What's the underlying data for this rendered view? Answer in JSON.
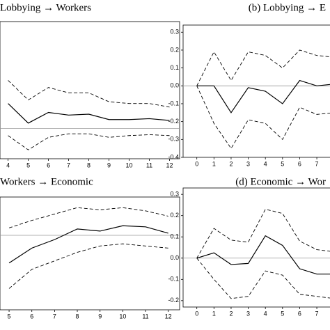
{
  "chart_data": [
    {
      "type": "line",
      "title": "Lobbying → Workers",
      "xlim": [
        3.6,
        12.5
      ],
      "ylim": [
        -0.17,
        0.6
      ],
      "xticks": [
        4,
        5,
        6,
        7,
        8,
        9,
        10,
        11,
        12
      ],
      "hline": 0,
      "x": [
        4,
        5,
        6,
        7,
        8,
        9,
        10,
        11,
        12
      ],
      "series": [
        {
          "style": "solid",
          "color": "#000000",
          "values": [
            0.14,
            0.03,
            0.09,
            0.075,
            0.08,
            0.05,
            0.05,
            0.055,
            0.045
          ]
        },
        {
          "style": "dashed",
          "color": "#000000",
          "values": [
            0.27,
            0.16,
            0.23,
            0.2,
            0.2,
            0.15,
            0.14,
            0.14,
            0.12
          ]
        },
        {
          "style": "dashed",
          "color": "#000000",
          "values": [
            -0.04,
            -0.12,
            -0.05,
            -0.03,
            -0.03,
            -0.05,
            -0.04,
            -0.035,
            -0.04
          ]
        }
      ]
    },
    {
      "type": "line",
      "title": "(b) Lobbying → E",
      "xlim": [
        -0.8,
        8.5
      ],
      "ylim": [
        -0.4,
        0.34
      ],
      "xticks": [
        0,
        1,
        2,
        3,
        4,
        5,
        6,
        7,
        8
      ],
      "hline": 0,
      "yticks": [
        0.3,
        0.2,
        0.1,
        {
          "value": 0,
          "label": "0.0"
        },
        -0.1,
        -0.2,
        -0.3,
        -0.4
      ],
      "x": [
        0,
        1,
        2,
        3,
        4,
        5,
        6,
        7,
        8
      ],
      "series": [
        {
          "style": "solid",
          "color": "#000000",
          "values": [
            0,
            0,
            -0.15,
            -0.01,
            -0.03,
            -0.1,
            0.03,
            0,
            0.01
          ]
        },
        {
          "style": "dashed",
          "color": "#000000",
          "values": [
            0,
            0.19,
            0.03,
            0.19,
            0.17,
            0.1,
            0.2,
            0.17,
            0.16
          ]
        },
        {
          "style": "dashed",
          "color": "#000000",
          "values": [
            0,
            -0.21,
            -0.35,
            -0.19,
            -0.21,
            -0.3,
            -0.12,
            -0.16,
            -0.15
          ]
        }
      ]
    },
    {
      "type": "line",
      "title": "Workers → Economic",
      "xlim": [
        4.6,
        12.5
      ],
      "ylim": [
        -0.35,
        0.18
      ],
      "xticks": [
        5,
        6,
        7,
        8,
        9,
        10,
        11,
        12
      ],
      "hline": 0,
      "x": [
        5,
        6,
        7,
        8,
        9,
        10,
        11,
        12
      ],
      "series": [
        {
          "style": "solid",
          "color": "#000000",
          "values": [
            -0.13,
            -0.06,
            -0.02,
            0.03,
            0.02,
            0.045,
            0.04,
            0.01
          ]
        },
        {
          "style": "dashed",
          "color": "#000000",
          "values": [
            0.035,
            0.07,
            0.1,
            0.13,
            0.12,
            0.13,
            0.115,
            0.09
          ]
        },
        {
          "style": "dashed",
          "color": "#000000",
          "values": [
            -0.25,
            -0.16,
            -0.12,
            -0.08,
            -0.05,
            -0.04,
            -0.05,
            -0.06
          ]
        }
      ]
    },
    {
      "type": "line",
      "title": "(d) Economic → Wor",
      "xlim": [
        -0.8,
        8.5
      ],
      "ylim": [
        -0.23,
        0.33
      ],
      "xticks": [
        0,
        1,
        2,
        3,
        4,
        5,
        6,
        7,
        8
      ],
      "hline": 0,
      "yticks": [
        0.3,
        0.2,
        0.1,
        {
          "value": 0,
          "label": "0.0"
        },
        -0.1,
        -0.2
      ],
      "x": [
        0,
        1,
        2,
        3,
        4,
        5,
        6,
        7,
        8
      ],
      "series": [
        {
          "style": "solid",
          "color": "#000000",
          "values": [
            0,
            0.025,
            -0.03,
            -0.025,
            0.105,
            0.06,
            -0.05,
            -0.075,
            -0.075
          ]
        },
        {
          "style": "dashed",
          "color": "#000000",
          "values": [
            0,
            0.14,
            0.085,
            0.075,
            0.23,
            0.21,
            0.08,
            0.04,
            0.03
          ]
        },
        {
          "style": "dashed",
          "color": "#000000",
          "values": [
            0,
            -0.1,
            -0.19,
            -0.18,
            -0.06,
            -0.08,
            -0.17,
            -0.18,
            -0.19
          ]
        }
      ]
    }
  ]
}
